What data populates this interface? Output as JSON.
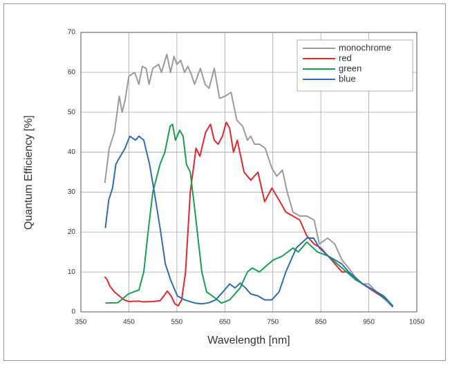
{
  "chart_data": {
    "type": "line",
    "xlabel": "Wavelength [nm]",
    "ylabel": "Quantum Efficiency [%]",
    "xlim": [
      350,
      1050
    ],
    "xticks": [
      350,
      450,
      550,
      650,
      750,
      850,
      950,
      1050
    ],
    "ylim": [
      0,
      70
    ],
    "yticks": [
      0,
      10,
      20,
      30,
      40,
      50,
      60,
      70
    ],
    "grid": true,
    "legend": "upper right",
    "series": [
      {
        "name": "monochrome",
        "color": "#9a9a9a",
        "x": [
          400,
          409,
          420,
          430,
          436,
          442,
          450,
          462,
          471,
          478,
          486,
          492,
          500,
          512,
          518,
          529,
          537,
          544,
          550,
          558,
          566,
          573,
          580,
          587,
          599,
          609,
          617,
          628,
          639,
          650,
          663,
          675,
          687,
          697,
          704,
          712,
          722,
          734,
          748,
          758,
          770,
          780,
          792,
          806,
          821,
          836,
          847,
          864,
          879,
          894,
          908,
          923,
          937,
          950,
          966,
          980,
          1000
        ],
        "values": [
          32.3,
          41,
          45,
          54,
          50,
          53,
          59,
          60,
          57,
          61.5,
          61,
          57,
          61,
          62,
          60,
          64.5,
          60,
          64,
          62,
          63,
          60,
          61.5,
          59.5,
          57,
          61,
          57,
          56,
          61,
          53.5,
          54,
          55,
          48,
          46.5,
          43,
          44,
          42,
          42,
          41,
          36,
          34,
          35.5,
          30,
          25,
          24,
          24,
          23,
          17,
          18.5,
          17,
          13,
          11,
          8.5,
          7,
          7,
          5,
          3.5,
          1.2
        ]
      },
      {
        "name": "red",
        "color": "#e3262c",
        "x": [
          400,
          405,
          410,
          420,
          430,
          440,
          450,
          470,
          480,
          500,
          515,
          523,
          530,
          538,
          546,
          553,
          560,
          568,
          578,
          590,
          598,
          610,
          620,
          628,
          636,
          645,
          653,
          660,
          668,
          676,
          690,
          704,
          719,
          733,
          748,
          763,
          777,
          792,
          806,
          821,
          836,
          850,
          865,
          894,
          908,
          937,
          966,
          988,
          1000
        ],
        "values": [
          8.8,
          8,
          6.5,
          5,
          4,
          3,
          2.6,
          2.7,
          2.5,
          2.6,
          2.8,
          4,
          5.2,
          4,
          2,
          1.5,
          3,
          10,
          30,
          41,
          39,
          45,
          47,
          43,
          42,
          44,
          47.5,
          46,
          40,
          43,
          35,
          33,
          35,
          27.6,
          31,
          28,
          25,
          24,
          23,
          19,
          17,
          16,
          14,
          10,
          10,
          7,
          4.7,
          3,
          1.3
        ]
      },
      {
        "name": "green",
        "color": "#16a04b",
        "x": [
          401,
          427,
          449,
          471,
          481,
          490,
          500,
          515,
          525,
          536,
          541,
          547,
          556,
          563,
          570,
          578,
          588,
          602,
          612,
          624,
          643,
          660,
          682,
          697,
          707,
          722,
          736,
          751,
          770,
          792,
          803,
          821,
          843,
          865,
          894,
          923,
          952,
          981,
          1000
        ],
        "values": [
          2.2,
          2.3,
          4.5,
          5.5,
          10,
          20,
          30,
          37,
          40,
          46.5,
          47,
          43,
          45.5,
          44,
          37,
          35,
          25,
          10,
          5,
          4,
          2.2,
          3,
          6,
          10,
          11,
          10,
          11.5,
          13,
          14,
          16,
          15,
          17.5,
          15,
          14,
          11,
          8,
          6,
          4,
          1.5
        ]
      },
      {
        "name": "blue",
        "color": "#2b6cb2",
        "x": [
          401,
          408,
          416,
          423,
          430,
          442,
          452,
          464,
          471,
          481,
          493,
          503,
          515,
          526,
          537,
          551,
          566,
          588,
          602,
          617,
          631,
          646,
          660,
          671,
          682,
          693,
          704,
          719,
          733,
          748,
          763,
          777,
          799,
          821,
          835,
          847,
          865,
          894,
          908,
          937,
          966,
          988,
          1000
        ],
        "values": [
          21,
          28,
          31,
          37,
          38.5,
          41,
          44,
          43,
          44,
          43,
          37,
          30,
          21,
          12,
          8,
          4,
          3,
          2.2,
          2,
          2.3,
          3,
          5,
          7,
          6,
          7.2,
          6,
          4.5,
          4,
          3,
          3,
          5,
          10,
          16,
          18.5,
          18.5,
          16,
          14,
          12,
          10,
          7,
          5,
          3,
          1.3
        ]
      }
    ]
  }
}
